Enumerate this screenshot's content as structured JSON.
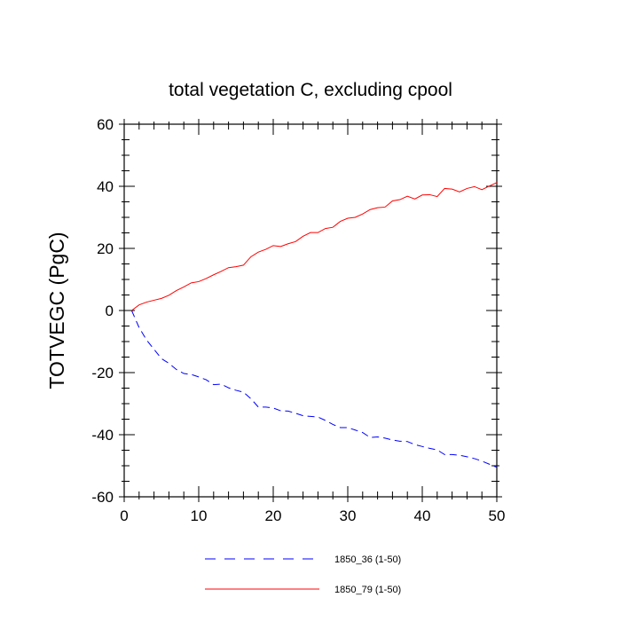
{
  "chart_data": {
    "type": "line",
    "title": "total vegetation C, excluding cpool",
    "xlabel": "",
    "ylabel": "TOTVEGC  (PgC)",
    "xlim": [
      0,
      50
    ],
    "ylim": [
      -60,
      60
    ],
    "xticks": [
      0,
      10,
      20,
      30,
      40,
      50
    ],
    "yticks": [
      60,
      40,
      20,
      0,
      -20,
      -40,
      -60
    ],
    "xtick_labels": [
      "0",
      "10",
      "20",
      "30",
      "40",
      "50"
    ],
    "ytick_labels": [
      "60",
      "40",
      "20",
      "0",
      "-20",
      "-40",
      "-60"
    ],
    "x": [
      1,
      2,
      3,
      4,
      5,
      6,
      7,
      8,
      9,
      10,
      11,
      12,
      13,
      14,
      15,
      16,
      17,
      18,
      19,
      20,
      21,
      22,
      23,
      24,
      25,
      26,
      27,
      28,
      29,
      30,
      31,
      32,
      33,
      34,
      35,
      36,
      37,
      38,
      39,
      40,
      41,
      42,
      43,
      44,
      45,
      46,
      47,
      48,
      49,
      50
    ],
    "series": [
      {
        "name": "1850_36 (1-50)",
        "color": "#0000ff",
        "dash": "dashed",
        "values": [
          0,
          -5.5,
          -9.5,
          -12.5,
          -15.5,
          -17,
          -19,
          -20.3,
          -20.6,
          -21.4,
          -22.3,
          -23.9,
          -23.7,
          -24.9,
          -25.7,
          -26.3,
          -28.4,
          -31.1,
          -31.1,
          -31.4,
          -32.3,
          -32.4,
          -33.1,
          -33.9,
          -34.1,
          -34.3,
          -35.4,
          -36.7,
          -37.7,
          -37.7,
          -38.5,
          -39.3,
          -40.9,
          -40.7,
          -41.1,
          -41.7,
          -42.1,
          -42.2,
          -43.2,
          -43.8,
          -44.4,
          -44.9,
          -46.4,
          -46.4,
          -46.6,
          -47.1,
          -47.7,
          -48.5,
          -49.5,
          -50.5
        ]
      },
      {
        "name": "1850_79 (1-50)",
        "color": "#ff0000",
        "dash": "solid",
        "values": [
          0,
          1.8,
          2.7,
          3.3,
          3.9,
          4.9,
          6.4,
          7.6,
          8.9,
          9.3,
          10.3,
          11.5,
          12.6,
          13.8,
          14.1,
          14.6,
          17.3,
          18.8,
          19.7,
          20.9,
          20.6,
          21.5,
          22.2,
          23.9,
          25.1,
          25.1,
          26.4,
          26.8,
          28.7,
          29.7,
          30.0,
          31.1,
          32.5,
          33.1,
          33.3,
          35.3,
          35.7,
          36.8,
          35.9,
          37.2,
          37.3,
          36.7,
          39.3,
          39.1,
          38.2,
          39.3,
          39.9,
          38.9,
          40.1,
          41.2
        ]
      }
    ],
    "legend_position": "bottom"
  }
}
